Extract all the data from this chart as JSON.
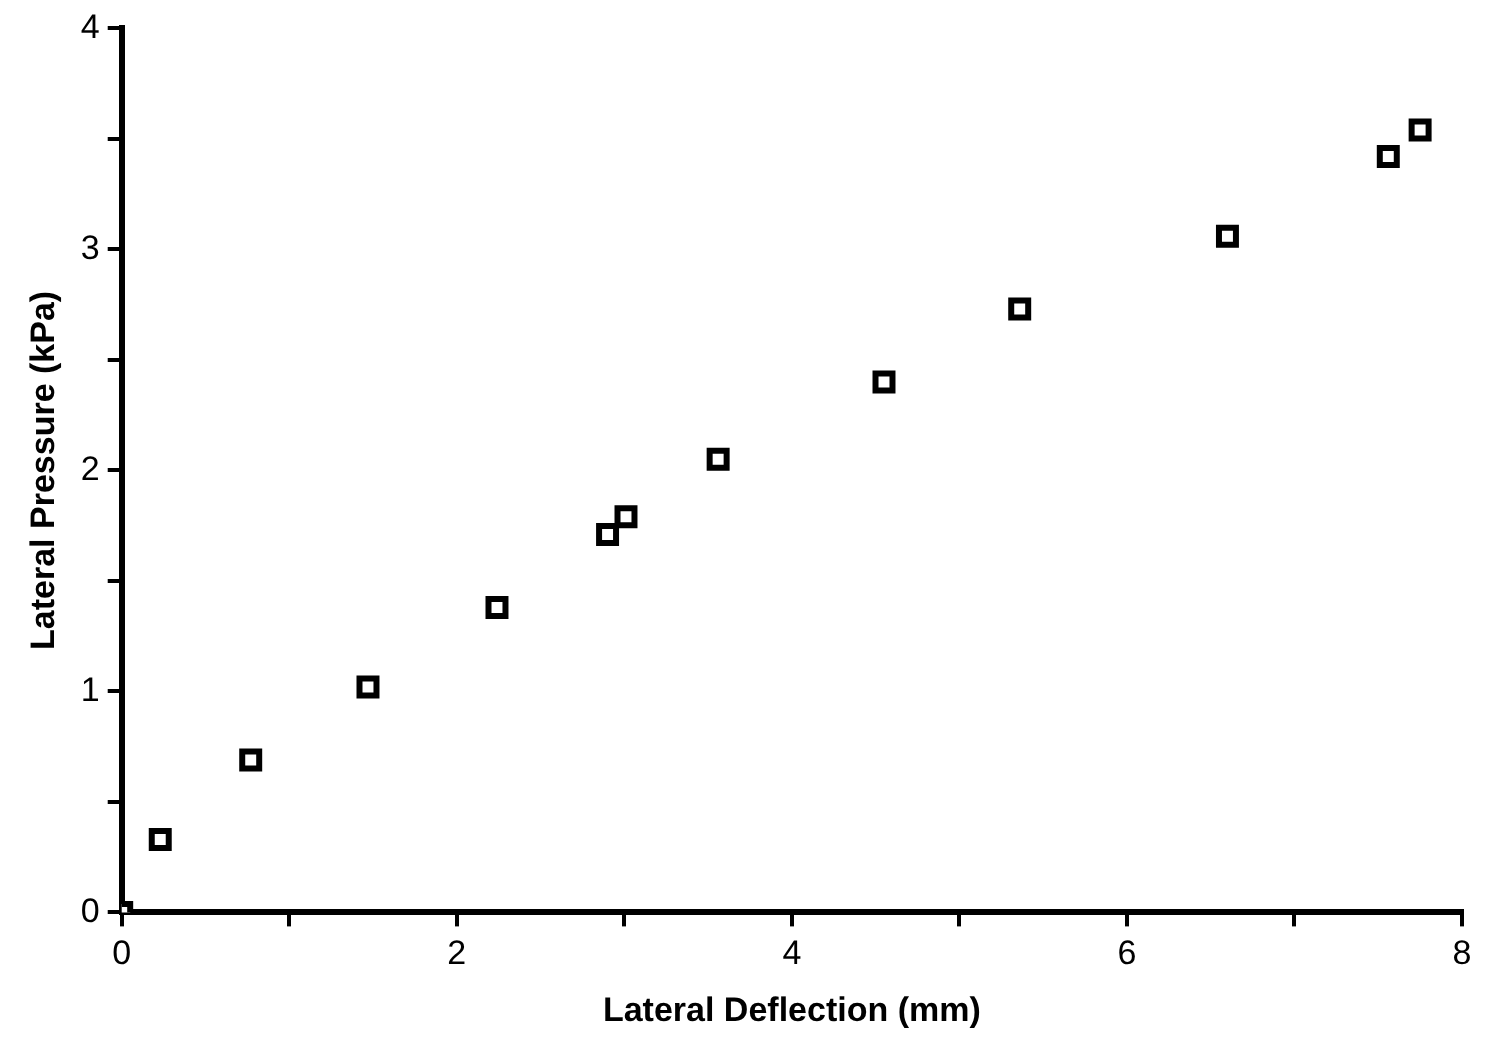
{
  "chart_data": {
    "type": "scatter",
    "xlabel": "Lateral Deflection (mm)",
    "ylabel": "Lateral Pressure (kPa)",
    "x": [
      0,
      0.23,
      0.77,
      1.47,
      2.24,
      2.9,
      3.01,
      3.56,
      4.55,
      5.36,
      6.6,
      7.56,
      7.75
    ],
    "series": [
      {
        "color": "#000000",
        "values": [
          0,
          0.33,
          0.69,
          1.02,
          1.38,
          1.71,
          1.79,
          2.05,
          2.4,
          2.73,
          3.06,
          3.42,
          3.54
        ]
      }
    ],
    "xlim": [
      0,
      8
    ],
    "ylim": [
      0,
      4
    ],
    "xticks": [
      0,
      {
        "value": 1,
        "label": null
      },
      2,
      {
        "value": 3,
        "label": null
      },
      4,
      {
        "value": 5,
        "label": null
      },
      6,
      {
        "value": 7,
        "label": null
      },
      8
    ],
    "yticks": [
      0,
      {
        "value": 0.5,
        "label": null
      },
      1,
      {
        "value": 1.5,
        "label": null
      },
      2,
      {
        "value": 2.5,
        "label": null
      },
      3,
      {
        "value": 3.5,
        "label": null
      },
      4
    ],
    "grid": false,
    "legend": false,
    "marker": "square"
  }
}
